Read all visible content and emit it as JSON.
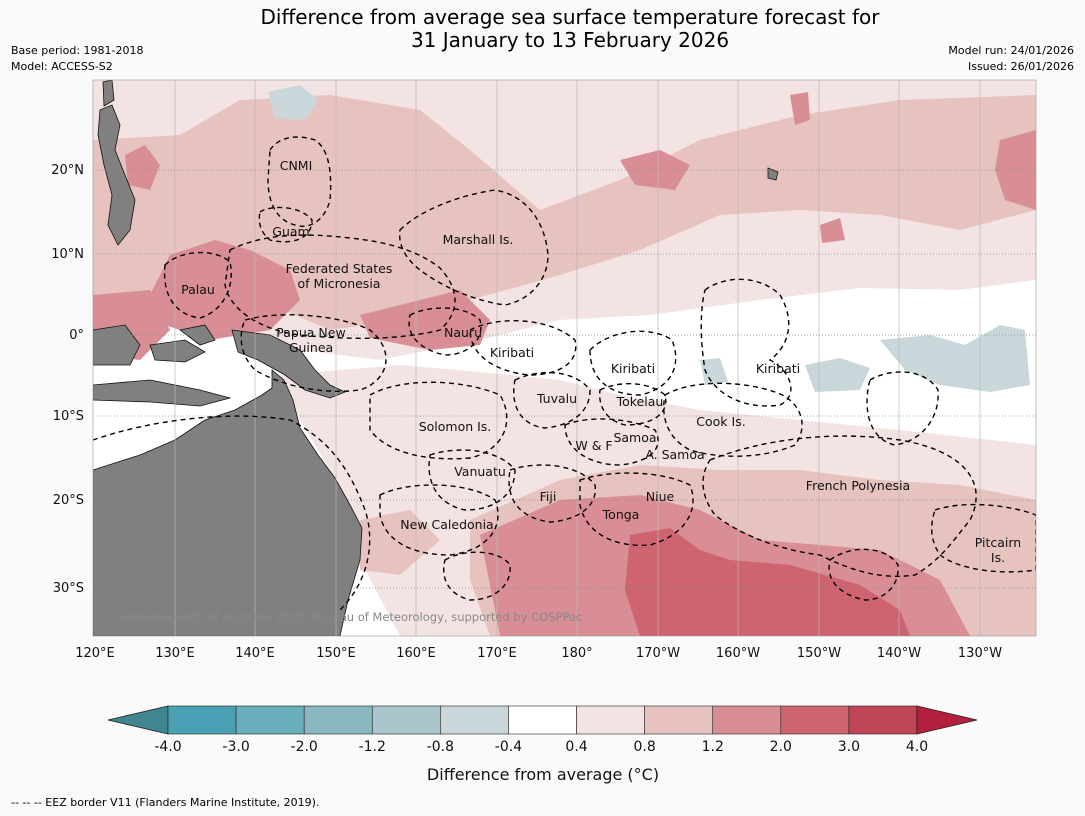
{
  "title": {
    "line1": "Difference from average sea surface temperature forecast for",
    "line2": "31 January to 13 February 2026"
  },
  "meta": {
    "base_period": "Base period: 1981-2018",
    "model": "Model: ACCESS-S2",
    "model_run": "Model run: 24/01/2026",
    "issued": "Issued: 26/01/2026"
  },
  "axes": {
    "longitude_labels": [
      "120°E",
      "130°E",
      "140°E",
      "150°E",
      "160°E",
      "170°E",
      "180°",
      "170°W",
      "160°W",
      "150°W",
      "140°W",
      "130°W"
    ],
    "latitude_labels": [
      "20°N",
      "10°N",
      "0°",
      "10°S",
      "20°S",
      "30°S"
    ]
  },
  "regions": {
    "cnmi": "CNMI",
    "guam": "Guam",
    "marshall": "Marshall Is.",
    "fsm_1": "Federated States",
    "fsm_2": "of Micronesia",
    "palau": "Palau",
    "png_1": "Papua New",
    "png_2": "Guinea",
    "nauru": "Nauru",
    "kiribati_w": "Kiribati",
    "kiribati_c": "Kiribati",
    "kiribati_e": "Kiribati",
    "tuvalu": "Tuvalu",
    "tokelau": "Tokelau",
    "cook": "Cook Is.",
    "solomon": "Solomon Is.",
    "samoa": "Samoa",
    "wf": "W & F",
    "asamoa": "A. Samoa",
    "vanuatu": "Vanuatu",
    "fiji": "Fiji",
    "niue": "Niue",
    "tonga": "Tonga",
    "french_polynesia": "French Polynesia",
    "new_caledonia": "New Caledonia",
    "pitcairn_1": "Pitcairn",
    "pitcairn_2": "Is."
  },
  "copyright": "© Commonwealth of Australia 2026, Bureau of Meteorology, supported by COSPPac",
  "colorbar": {
    "ticks": [
      "-4.0",
      "-3.0",
      "-2.0",
      "-1.2",
      "-0.8",
      "-0.4",
      "0.4",
      "0.8",
      "1.2",
      "2.0",
      "3.0",
      "4.0"
    ],
    "colors": [
      "#3f8690",
      "#4aa0b4",
      "#6aaebc",
      "#89b7c2",
      "#a7c5ca",
      "#c9d7db",
      "#ffffff",
      "#f3e4e3",
      "#e7c3c0",
      "#d98e96",
      "#cd6470",
      "#bd4555",
      "#b3203e"
    ],
    "label": "Difference from average (°C)"
  },
  "colors": {
    "land": "#808080",
    "background_ocean": "#ffffff"
  },
  "footnote": "--  --  -- EEZ border V11 (Flanders Marine Institute, 2019)."
}
